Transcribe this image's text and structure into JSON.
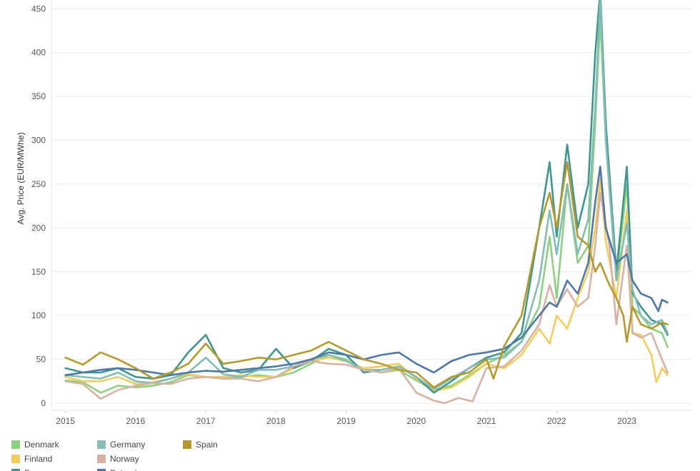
{
  "chart_data": {
    "type": "line",
    "ylabel": "Avg. Price (EUR/MWhe)",
    "xlabel": "",
    "ylim": [
      0,
      460
    ],
    "xlim": [
      2014.8,
      2023.92
    ],
    "yticks": [
      0,
      50,
      100,
      150,
      200,
      250,
      300,
      350,
      400,
      450
    ],
    "xticks": [
      2015,
      2016,
      2017,
      2018,
      2019,
      2020,
      2021,
      2022,
      2023
    ],
    "grid": "horizontal",
    "legend_position": "bottom",
    "series": [
      {
        "name": "Denmark",
        "color": "#8dd17e",
        "points": [
          [
            2015.0,
            26
          ],
          [
            2015.25,
            24
          ],
          [
            2015.5,
            12
          ],
          [
            2015.75,
            20
          ],
          [
            2016.0,
            18
          ],
          [
            2016.25,
            20
          ],
          [
            2016.5,
            24
          ],
          [
            2016.75,
            32
          ],
          [
            2017.0,
            30
          ],
          [
            2017.25,
            28
          ],
          [
            2017.5,
            30
          ],
          [
            2017.75,
            32
          ],
          [
            2018.0,
            30
          ],
          [
            2018.25,
            35
          ],
          [
            2018.5,
            45
          ],
          [
            2018.75,
            55
          ],
          [
            2019.0,
            50
          ],
          [
            2019.25,
            38
          ],
          [
            2019.5,
            35
          ],
          [
            2019.75,
            38
          ],
          [
            2020.0,
            26
          ],
          [
            2020.25,
            15
          ],
          [
            2020.5,
            20
          ],
          [
            2020.75,
            32
          ],
          [
            2021.0,
            45
          ],
          [
            2021.25,
            55
          ],
          [
            2021.5,
            70
          ],
          [
            2021.75,
            110
          ],
          [
            2021.9,
            190
          ],
          [
            2022.0,
            120
          ],
          [
            2022.15,
            250
          ],
          [
            2022.3,
            160
          ],
          [
            2022.45,
            180
          ],
          [
            2022.55,
            320
          ],
          [
            2022.62,
            440
          ],
          [
            2022.7,
            300
          ],
          [
            2022.85,
            140
          ],
          [
            2023.0,
            250
          ],
          [
            2023.08,
            110
          ],
          [
            2023.2,
            100
          ],
          [
            2023.35,
            85
          ],
          [
            2023.5,
            80
          ],
          [
            2023.58,
            64
          ]
        ]
      },
      {
        "name": "Finland",
        "color": "#f2cd5c",
        "points": [
          [
            2015.0,
            30
          ],
          [
            2015.25,
            25
          ],
          [
            2015.5,
            25
          ],
          [
            2015.75,
            30
          ],
          [
            2016.0,
            22
          ],
          [
            2016.25,
            24
          ],
          [
            2016.5,
            28
          ],
          [
            2016.75,
            33
          ],
          [
            2017.0,
            30
          ],
          [
            2017.25,
            30
          ],
          [
            2017.5,
            32
          ],
          [
            2017.75,
            30
          ],
          [
            2018.0,
            30
          ],
          [
            2018.25,
            40
          ],
          [
            2018.5,
            48
          ],
          [
            2018.75,
            52
          ],
          [
            2019.0,
            48
          ],
          [
            2019.25,
            40
          ],
          [
            2019.5,
            42
          ],
          [
            2019.75,
            45
          ],
          [
            2020.0,
            28
          ],
          [
            2020.25,
            14
          ],
          [
            2020.5,
            18
          ],
          [
            2020.75,
            30
          ],
          [
            2021.0,
            45
          ],
          [
            2021.25,
            40
          ],
          [
            2021.5,
            55
          ],
          [
            2021.75,
            85
          ],
          [
            2021.9,
            68
          ],
          [
            2022.0,
            100
          ],
          [
            2022.15,
            85
          ],
          [
            2022.3,
            120
          ],
          [
            2022.45,
            150
          ],
          [
            2022.55,
            200
          ],
          [
            2022.62,
            255
          ],
          [
            2022.7,
            185
          ],
          [
            2022.85,
            120
          ],
          [
            2023.0,
            220
          ],
          [
            2023.08,
            80
          ],
          [
            2023.2,
            78
          ],
          [
            2023.35,
            55
          ],
          [
            2023.42,
            24
          ],
          [
            2023.5,
            40
          ],
          [
            2023.58,
            32
          ]
        ]
      },
      {
        "name": "France",
        "color": "#3e9690",
        "points": [
          [
            2015.0,
            40
          ],
          [
            2015.25,
            35
          ],
          [
            2015.5,
            35
          ],
          [
            2015.75,
            40
          ],
          [
            2016.0,
            30
          ],
          [
            2016.25,
            28
          ],
          [
            2016.5,
            32
          ],
          [
            2016.75,
            58
          ],
          [
            2017.0,
            78
          ],
          [
            2017.25,
            40
          ],
          [
            2017.5,
            35
          ],
          [
            2017.75,
            38
          ],
          [
            2018.0,
            62
          ],
          [
            2018.25,
            40
          ],
          [
            2018.5,
            48
          ],
          [
            2018.75,
            62
          ],
          [
            2019.0,
            55
          ],
          [
            2019.25,
            35
          ],
          [
            2019.5,
            38
          ],
          [
            2019.75,
            42
          ],
          [
            2020.0,
            30
          ],
          [
            2020.25,
            12
          ],
          [
            2020.5,
            25
          ],
          [
            2020.75,
            40
          ],
          [
            2021.0,
            52
          ],
          [
            2021.25,
            58
          ],
          [
            2021.5,
            80
          ],
          [
            2021.75,
            200
          ],
          [
            2021.9,
            275
          ],
          [
            2022.0,
            190
          ],
          [
            2022.15,
            295
          ],
          [
            2022.3,
            200
          ],
          [
            2022.45,
            250
          ],
          [
            2022.55,
            400
          ],
          [
            2022.62,
            470
          ],
          [
            2022.7,
            320
          ],
          [
            2022.85,
            150
          ],
          [
            2023.0,
            270
          ],
          [
            2023.08,
            125
          ],
          [
            2023.2,
            110
          ],
          [
            2023.35,
            95
          ],
          [
            2023.5,
            90
          ],
          [
            2023.58,
            78
          ]
        ]
      },
      {
        "name": "Germany",
        "color": "#85bdb6",
        "points": [
          [
            2015.0,
            32
          ],
          [
            2015.25,
            30
          ],
          [
            2015.5,
            28
          ],
          [
            2015.75,
            35
          ],
          [
            2016.0,
            25
          ],
          [
            2016.25,
            23
          ],
          [
            2016.5,
            28
          ],
          [
            2016.75,
            35
          ],
          [
            2017.0,
            52
          ],
          [
            2017.25,
            33
          ],
          [
            2017.5,
            30
          ],
          [
            2017.75,
            38
          ],
          [
            2018.0,
            38
          ],
          [
            2018.25,
            42
          ],
          [
            2018.5,
            50
          ],
          [
            2018.75,
            55
          ],
          [
            2019.0,
            48
          ],
          [
            2019.25,
            38
          ],
          [
            2019.5,
            38
          ],
          [
            2019.75,
            42
          ],
          [
            2020.0,
            30
          ],
          [
            2020.25,
            16
          ],
          [
            2020.5,
            28
          ],
          [
            2020.75,
            40
          ],
          [
            2021.0,
            50
          ],
          [
            2021.25,
            52
          ],
          [
            2021.5,
            70
          ],
          [
            2021.75,
            140
          ],
          [
            2021.9,
            220
          ],
          [
            2022.0,
            170
          ],
          [
            2022.15,
            250
          ],
          [
            2022.3,
            170
          ],
          [
            2022.45,
            210
          ],
          [
            2022.55,
            340
          ],
          [
            2022.62,
            460
          ],
          [
            2022.7,
            300
          ],
          [
            2022.85,
            140
          ],
          [
            2023.0,
            205
          ],
          [
            2023.08,
            130
          ],
          [
            2023.2,
            100
          ],
          [
            2023.35,
            90
          ],
          [
            2023.5,
            95
          ],
          [
            2023.58,
            80
          ]
        ]
      },
      {
        "name": "Norway",
        "color": "#d7b2a3",
        "points": [
          [
            2015.0,
            25
          ],
          [
            2015.25,
            22
          ],
          [
            2015.5,
            5
          ],
          [
            2015.75,
            15
          ],
          [
            2016.0,
            20
          ],
          [
            2016.25,
            23
          ],
          [
            2016.5,
            22
          ],
          [
            2016.75,
            28
          ],
          [
            2017.0,
            30
          ],
          [
            2017.25,
            28
          ],
          [
            2017.5,
            28
          ],
          [
            2017.75,
            25
          ],
          [
            2018.0,
            30
          ],
          [
            2018.25,
            42
          ],
          [
            2018.5,
            48
          ],
          [
            2018.75,
            45
          ],
          [
            2019.0,
            44
          ],
          [
            2019.25,
            38
          ],
          [
            2019.5,
            35
          ],
          [
            2019.75,
            40
          ],
          [
            2020.0,
            12
          ],
          [
            2020.25,
            3
          ],
          [
            2020.4,
            0
          ],
          [
            2020.6,
            6
          ],
          [
            2020.8,
            2
          ],
          [
            2021.0,
            40
          ],
          [
            2021.25,
            42
          ],
          [
            2021.5,
            60
          ],
          [
            2021.75,
            90
          ],
          [
            2021.9,
            135
          ],
          [
            2022.0,
            110
          ],
          [
            2022.15,
            130
          ],
          [
            2022.3,
            110
          ],
          [
            2022.45,
            120
          ],
          [
            2022.55,
            180
          ],
          [
            2022.62,
            240
          ],
          [
            2022.75,
            180
          ],
          [
            2022.85,
            90
          ],
          [
            2023.0,
            180
          ],
          [
            2023.08,
            80
          ],
          [
            2023.2,
            75
          ],
          [
            2023.35,
            80
          ],
          [
            2023.5,
            50
          ],
          [
            2023.58,
            35
          ]
        ]
      },
      {
        "name": "Poland",
        "color": "#4c78a8",
        "points": [
          [
            2015.0,
            32
          ],
          [
            2015.25,
            35
          ],
          [
            2015.5,
            38
          ],
          [
            2015.75,
            40
          ],
          [
            2016.0,
            38
          ],
          [
            2016.25,
            35
          ],
          [
            2016.5,
            32
          ],
          [
            2016.75,
            35
          ],
          [
            2017.0,
            37
          ],
          [
            2017.25,
            36
          ],
          [
            2017.5,
            38
          ],
          [
            2017.75,
            40
          ],
          [
            2018.0,
            42
          ],
          [
            2018.25,
            45
          ],
          [
            2018.5,
            50
          ],
          [
            2018.75,
            58
          ],
          [
            2019.0,
            55
          ],
          [
            2019.25,
            50
          ],
          [
            2019.5,
            55
          ],
          [
            2019.75,
            58
          ],
          [
            2020.0,
            45
          ],
          [
            2020.25,
            35
          ],
          [
            2020.5,
            48
          ],
          [
            2020.75,
            55
          ],
          [
            2021.0,
            58
          ],
          [
            2021.25,
            62
          ],
          [
            2021.5,
            75
          ],
          [
            2021.75,
            100
          ],
          [
            2021.9,
            115
          ],
          [
            2022.0,
            110
          ],
          [
            2022.15,
            140
          ],
          [
            2022.3,
            125
          ],
          [
            2022.45,
            160
          ],
          [
            2022.55,
            230
          ],
          [
            2022.62,
            270
          ],
          [
            2022.7,
            200
          ],
          [
            2022.85,
            160
          ],
          [
            2023.0,
            170
          ],
          [
            2023.08,
            140
          ],
          [
            2023.2,
            125
          ],
          [
            2023.35,
            120
          ],
          [
            2023.45,
            105
          ],
          [
            2023.5,
            118
          ],
          [
            2023.58,
            115
          ]
        ]
      },
      {
        "name": "Spain",
        "color": "#b5992b",
        "points": [
          [
            2015.0,
            52
          ],
          [
            2015.25,
            44
          ],
          [
            2015.5,
            58
          ],
          [
            2015.75,
            50
          ],
          [
            2016.0,
            40
          ],
          [
            2016.25,
            28
          ],
          [
            2016.5,
            35
          ],
          [
            2016.75,
            45
          ],
          [
            2017.0,
            68
          ],
          [
            2017.25,
            45
          ],
          [
            2017.5,
            48
          ],
          [
            2017.75,
            52
          ],
          [
            2018.0,
            50
          ],
          [
            2018.25,
            55
          ],
          [
            2018.5,
            60
          ],
          [
            2018.75,
            70
          ],
          [
            2019.0,
            60
          ],
          [
            2019.25,
            50
          ],
          [
            2019.5,
            45
          ],
          [
            2019.75,
            38
          ],
          [
            2020.0,
            35
          ],
          [
            2020.25,
            18
          ],
          [
            2020.5,
            30
          ],
          [
            2020.75,
            35
          ],
          [
            2021.0,
            50
          ],
          [
            2021.1,
            28
          ],
          [
            2021.25,
            65
          ],
          [
            2021.5,
            100
          ],
          [
            2021.75,
            200
          ],
          [
            2021.9,
            240
          ],
          [
            2022.0,
            200
          ],
          [
            2022.15,
            275
          ],
          [
            2022.3,
            190
          ],
          [
            2022.45,
            180
          ],
          [
            2022.55,
            150
          ],
          [
            2022.62,
            160
          ],
          [
            2022.75,
            135
          ],
          [
            2022.85,
            120
          ],
          [
            2022.95,
            100
          ],
          [
            2023.0,
            70
          ],
          [
            2023.08,
            110
          ],
          [
            2023.2,
            90
          ],
          [
            2023.35,
            85
          ],
          [
            2023.5,
            92
          ],
          [
            2023.58,
            90
          ]
        ]
      }
    ]
  }
}
